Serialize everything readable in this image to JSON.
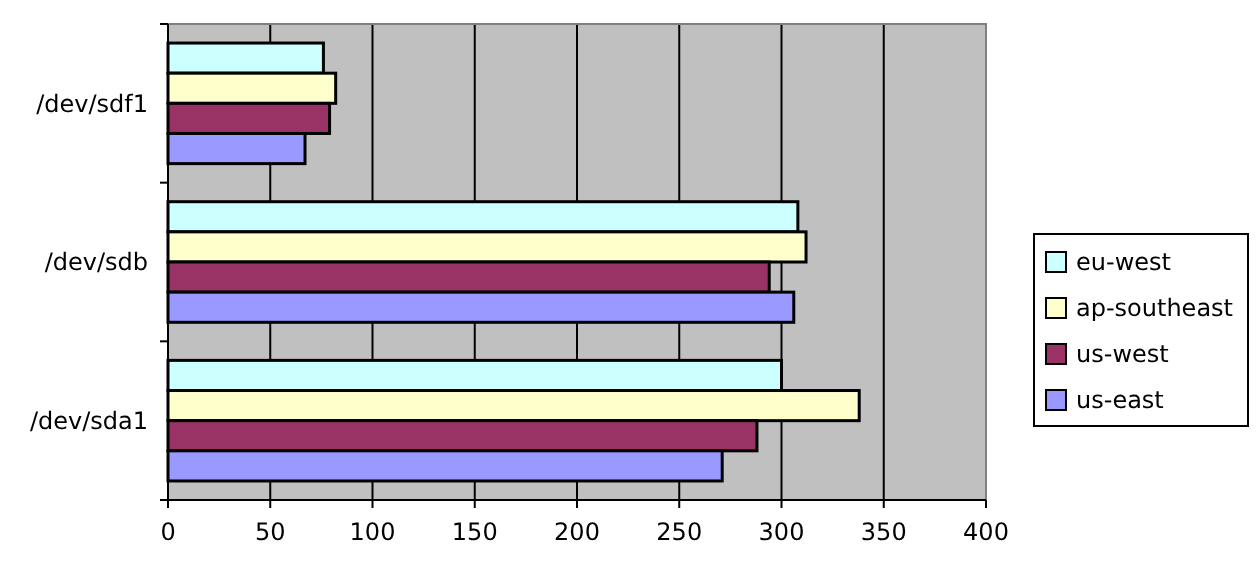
{
  "chart_data": {
    "type": "bar",
    "orientation": "horizontal",
    "categories": [
      "/dev/sdf1",
      "/dev/sdb",
      "/dev/sda1"
    ],
    "series": [
      {
        "name": "eu-west",
        "color": "#ccffff",
        "values": [
          76,
          308,
          300
        ]
      },
      {
        "name": "ap-southeast",
        "color": "#ffffcc",
        "values": [
          82,
          312,
          338
        ]
      },
      {
        "name": "us-west",
        "color": "#993366",
        "values": [
          79,
          294,
          288
        ]
      },
      {
        "name": "us-east",
        "color": "#9999ff",
        "values": [
          67,
          306,
          271
        ]
      }
    ],
    "xlim": [
      0,
      400
    ],
    "xticks": [
      0,
      50,
      100,
      150,
      200,
      250,
      300,
      350,
      400
    ],
    "grid": "x",
    "legend": "right"
  }
}
